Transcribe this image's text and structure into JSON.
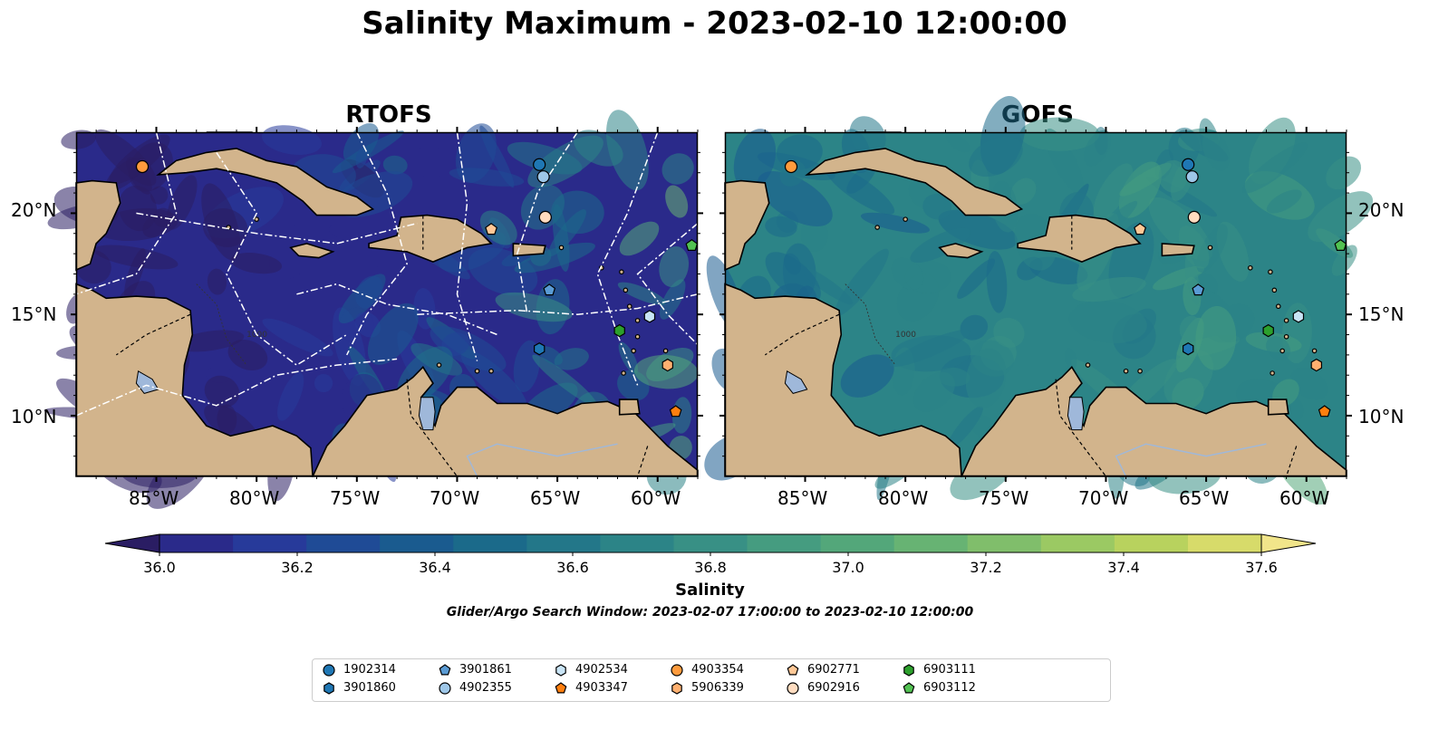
{
  "title": "Salinity Maximum - 2023-02-10 12:00:00",
  "panels": {
    "left": {
      "title": "RTOFS"
    },
    "right": {
      "title": "GOFS"
    }
  },
  "axes": {
    "lon_labels": [
      "85°W",
      "80°W",
      "75°W",
      "70°W",
      "65°W",
      "60°W"
    ],
    "lat_labels": [
      "20°N",
      "15°N",
      "10°N"
    ],
    "lon_range": [
      -89,
      -58
    ],
    "lat_range": [
      7,
      24
    ]
  },
  "contour_labels": {
    "depth_1000": "1000"
  },
  "colorbar": {
    "label": "Salinity",
    "ticks": [
      "36.0",
      "36.2",
      "36.4",
      "36.6",
      "36.8",
      "37.0",
      "37.2",
      "37.4",
      "37.6"
    ],
    "range": [
      36.0,
      37.6
    ],
    "colors": [
      "#2a1d63",
      "#2a2a8a",
      "#273a9a",
      "#1f4b96",
      "#1a5b8f",
      "#1b6a8a",
      "#237789",
      "#2c8487",
      "#389085",
      "#459c80",
      "#53a77a",
      "#67b373",
      "#80be6b",
      "#9bc963",
      "#b8d25e",
      "#d7db6a",
      "#f1e58a"
    ]
  },
  "search_window": "Glider/Argo Search Window: 2023-02-07 17:00:00 to 2023-02-10 12:00:00",
  "land_color": "#d2b48c",
  "legend": [
    {
      "id": "1902314",
      "marker": "circle",
      "color": "#1f77b4"
    },
    {
      "id": "3901860",
      "marker": "hexagon",
      "color": "#1f77b4"
    },
    {
      "id": "3901861",
      "marker": "pentagon",
      "color": "#5a9bd4"
    },
    {
      "id": "4902355",
      "marker": "circle",
      "color": "#9ec7e8"
    },
    {
      "id": "4902534",
      "marker": "hexagon",
      "color": "#c9e4f5"
    },
    {
      "id": "4903347",
      "marker": "pentagon",
      "color": "#ff7f0e"
    },
    {
      "id": "4903354",
      "marker": "circle",
      "color": "#ff9b3d"
    },
    {
      "id": "5906339",
      "marker": "hexagon",
      "color": "#ffb070"
    },
    {
      "id": "6902771",
      "marker": "pentagon",
      "color": "#ffc896"
    },
    {
      "id": "6902916",
      "marker": "circle",
      "color": "#ffdcc0"
    },
    {
      "id": "6903111",
      "marker": "hexagon",
      "color": "#2ca02c"
    },
    {
      "id": "6903112",
      "marker": "pentagon",
      "color": "#52c252"
    }
  ],
  "floats": [
    {
      "id": "1902314",
      "lon": -65.9,
      "lat": 22.4
    },
    {
      "id": "4902355",
      "lon": -65.7,
      "lat": 21.8
    },
    {
      "id": "6902916",
      "lon": -65.6,
      "lat": 19.8
    },
    {
      "id": "6902771",
      "lon": -68.3,
      "lat": 19.2
    },
    {
      "id": "4903354",
      "lon": -85.7,
      "lat": 22.3
    },
    {
      "id": "6903112",
      "lon": -58.3,
      "lat": 18.4
    },
    {
      "id": "3901861",
      "lon": -65.4,
      "lat": 16.2
    },
    {
      "id": "4902534",
      "lon": -60.4,
      "lat": 14.9
    },
    {
      "id": "6903111",
      "lon": -61.9,
      "lat": 14.2
    },
    {
      "id": "3901860",
      "lon": -65.9,
      "lat": 13.3
    },
    {
      "id": "5906339",
      "lon": -59.5,
      "lat": 12.5
    },
    {
      "id": "4903347",
      "lon": -59.1,
      "lat": 10.2
    }
  ]
}
